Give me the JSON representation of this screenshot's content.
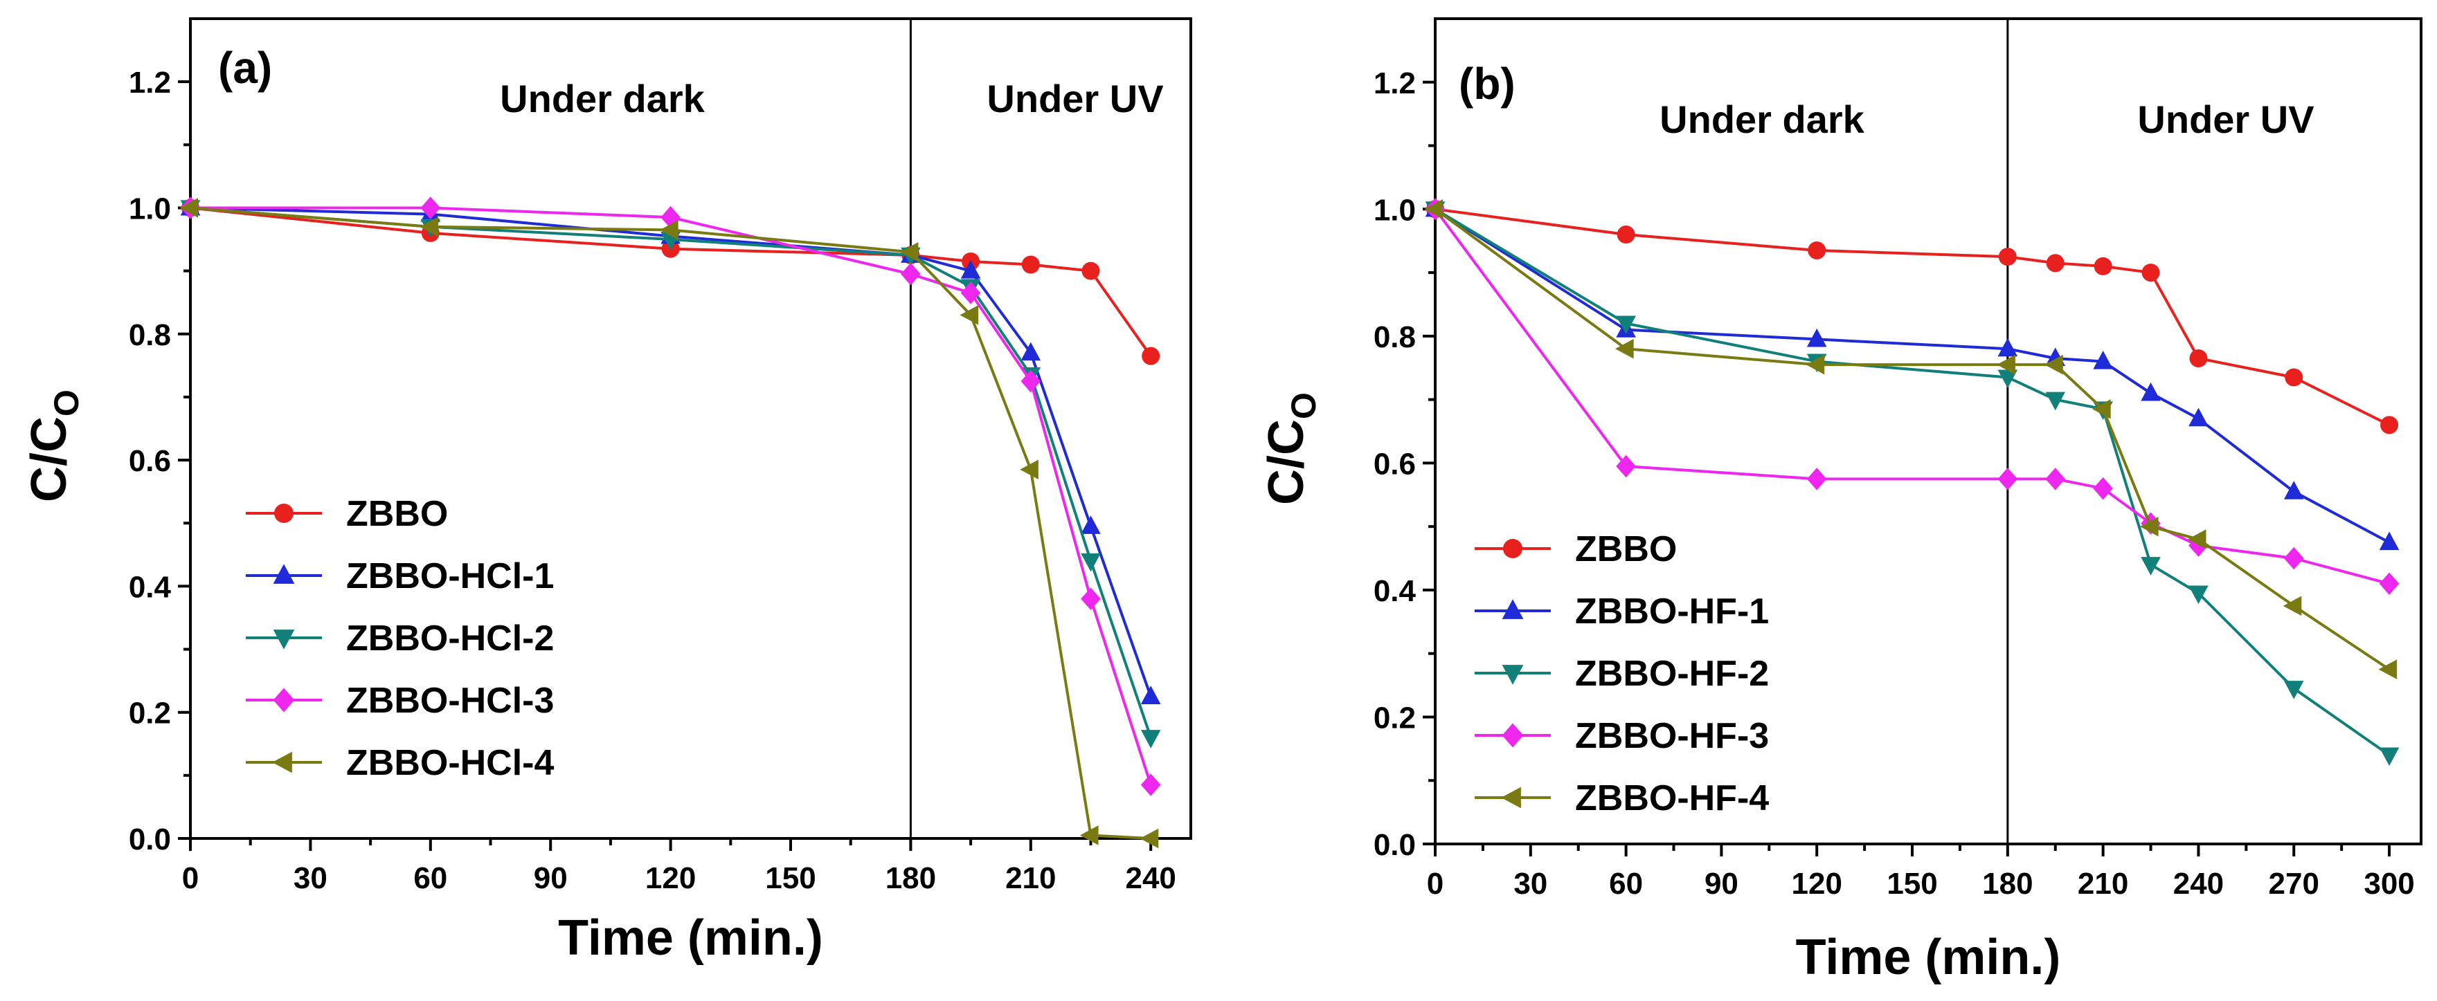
{
  "chart_data": [
    {
      "type": "line",
      "panel_label": "(a)",
      "xlabel": "Time (min.)",
      "ylabel_main": "C/C",
      "ylabel_sub": "O",
      "xlim": [
        0,
        250
      ],
      "ylim": [
        0,
        1.3
      ],
      "xticks": [
        0,
        30,
        60,
        90,
        120,
        150,
        180,
        210,
        240
      ],
      "yticks": [
        0.0,
        0.2,
        0.4,
        0.6,
        0.8,
        1.0,
        1.2
      ],
      "ytick_labels": [
        "0.0",
        "0.2",
        "0.4",
        "0.6",
        "0.8",
        "1.0",
        "1.2"
      ],
      "divider_x": 180,
      "annotations": [
        "Under dark",
        "Under UV"
      ],
      "legend_position": "bottom-left",
      "series": [
        {
          "name": "ZBBO",
          "color": "#e8201e",
          "marker": "circle",
          "x": [
            0,
            60,
            120,
            180,
            195,
            210,
            225,
            240
          ],
          "y": [
            1.0,
            0.96,
            0.935,
            0.925,
            0.915,
            0.91,
            0.9,
            0.765
          ]
        },
        {
          "name": "ZBBO-HCl-1",
          "color": "#1f2bd6",
          "marker": "triangle-up",
          "x": [
            0,
            60,
            120,
            180,
            195,
            210,
            225,
            240
          ],
          "y": [
            1.0,
            0.99,
            0.955,
            0.925,
            0.9,
            0.77,
            0.495,
            0.225
          ]
        },
        {
          "name": "ZBBO-HCl-2",
          "color": "#12807a",
          "marker": "triangle-down",
          "x": [
            0,
            60,
            120,
            180,
            195,
            210,
            225,
            240
          ],
          "y": [
            1.0,
            0.97,
            0.95,
            0.925,
            0.875,
            0.735,
            0.44,
            0.16
          ]
        },
        {
          "name": "ZBBO-HCl-3",
          "color": "#ee27ee",
          "marker": "diamond",
          "x": [
            0,
            60,
            120,
            180,
            195,
            210,
            225,
            240
          ],
          "y": [
            1.0,
            1.0,
            0.985,
            0.895,
            0.865,
            0.725,
            0.38,
            0.085
          ]
        },
        {
          "name": "ZBBO-HCl-4",
          "color": "#7a7a12",
          "marker": "triangle-left",
          "x": [
            0,
            60,
            120,
            180,
            195,
            210,
            225,
            240
          ],
          "y": [
            1.0,
            0.97,
            0.965,
            0.93,
            0.83,
            0.585,
            0.005,
            0.0
          ]
        }
      ]
    },
    {
      "type": "line",
      "panel_label": "(b)",
      "xlabel": "Time (min.)",
      "ylabel_main": "C/C",
      "ylabel_sub": "O",
      "xlim": [
        0,
        310
      ],
      "ylim": [
        0,
        1.3
      ],
      "xticks": [
        0,
        30,
        60,
        90,
        120,
        150,
        180,
        210,
        240,
        270,
        300
      ],
      "yticks": [
        0.0,
        0.2,
        0.4,
        0.6,
        0.8,
        1.0,
        1.2
      ],
      "ytick_labels": [
        "0.0",
        "0.2",
        "0.4",
        "0.6",
        "0.8",
        "1.0",
        "1.2"
      ],
      "divider_x": 180,
      "annotations": [
        "Under dark",
        "Under UV"
      ],
      "legend_position": "bottom-left",
      "series": [
        {
          "name": "ZBBO",
          "color": "#e8201e",
          "marker": "circle",
          "x": [
            0,
            60,
            120,
            180,
            195,
            210,
            225,
            240,
            270,
            300
          ],
          "y": [
            1.0,
            0.96,
            0.935,
            0.925,
            0.915,
            0.91,
            0.9,
            0.765,
            0.735,
            0.66
          ]
        },
        {
          "name": "ZBBO-HF-1",
          "color": "#1f2bd6",
          "marker": "triangle-up",
          "x": [
            0,
            60,
            120,
            180,
            195,
            210,
            225,
            240,
            270,
            300
          ],
          "y": [
            1.0,
            0.81,
            0.795,
            0.78,
            0.765,
            0.76,
            0.71,
            0.67,
            0.555,
            0.475
          ]
        },
        {
          "name": "ZBBO-HF-2",
          "color": "#12807a",
          "marker": "triangle-down",
          "x": [
            0,
            60,
            120,
            180,
            195,
            210,
            225,
            240,
            270,
            300
          ],
          "y": [
            1.0,
            0.82,
            0.76,
            0.735,
            0.7,
            0.685,
            0.44,
            0.395,
            0.245,
            0.14
          ]
        },
        {
          "name": "ZBBO-HF-3",
          "color": "#ee27ee",
          "marker": "diamond",
          "x": [
            0,
            60,
            120,
            180,
            195,
            210,
            225,
            240,
            270,
            300
          ],
          "y": [
            1.0,
            0.595,
            0.575,
            0.575,
            0.575,
            0.56,
            0.505,
            0.47,
            0.45,
            0.41
          ]
        },
        {
          "name": "ZBBO-HF-4",
          "color": "#7a7a12",
          "marker": "triangle-left",
          "x": [
            0,
            60,
            120,
            180,
            195,
            210,
            225,
            240,
            270,
            300
          ],
          "y": [
            1.0,
            0.78,
            0.755,
            0.755,
            0.755,
            0.685,
            0.5,
            0.48,
            0.375,
            0.275
          ]
        }
      ]
    }
  ]
}
